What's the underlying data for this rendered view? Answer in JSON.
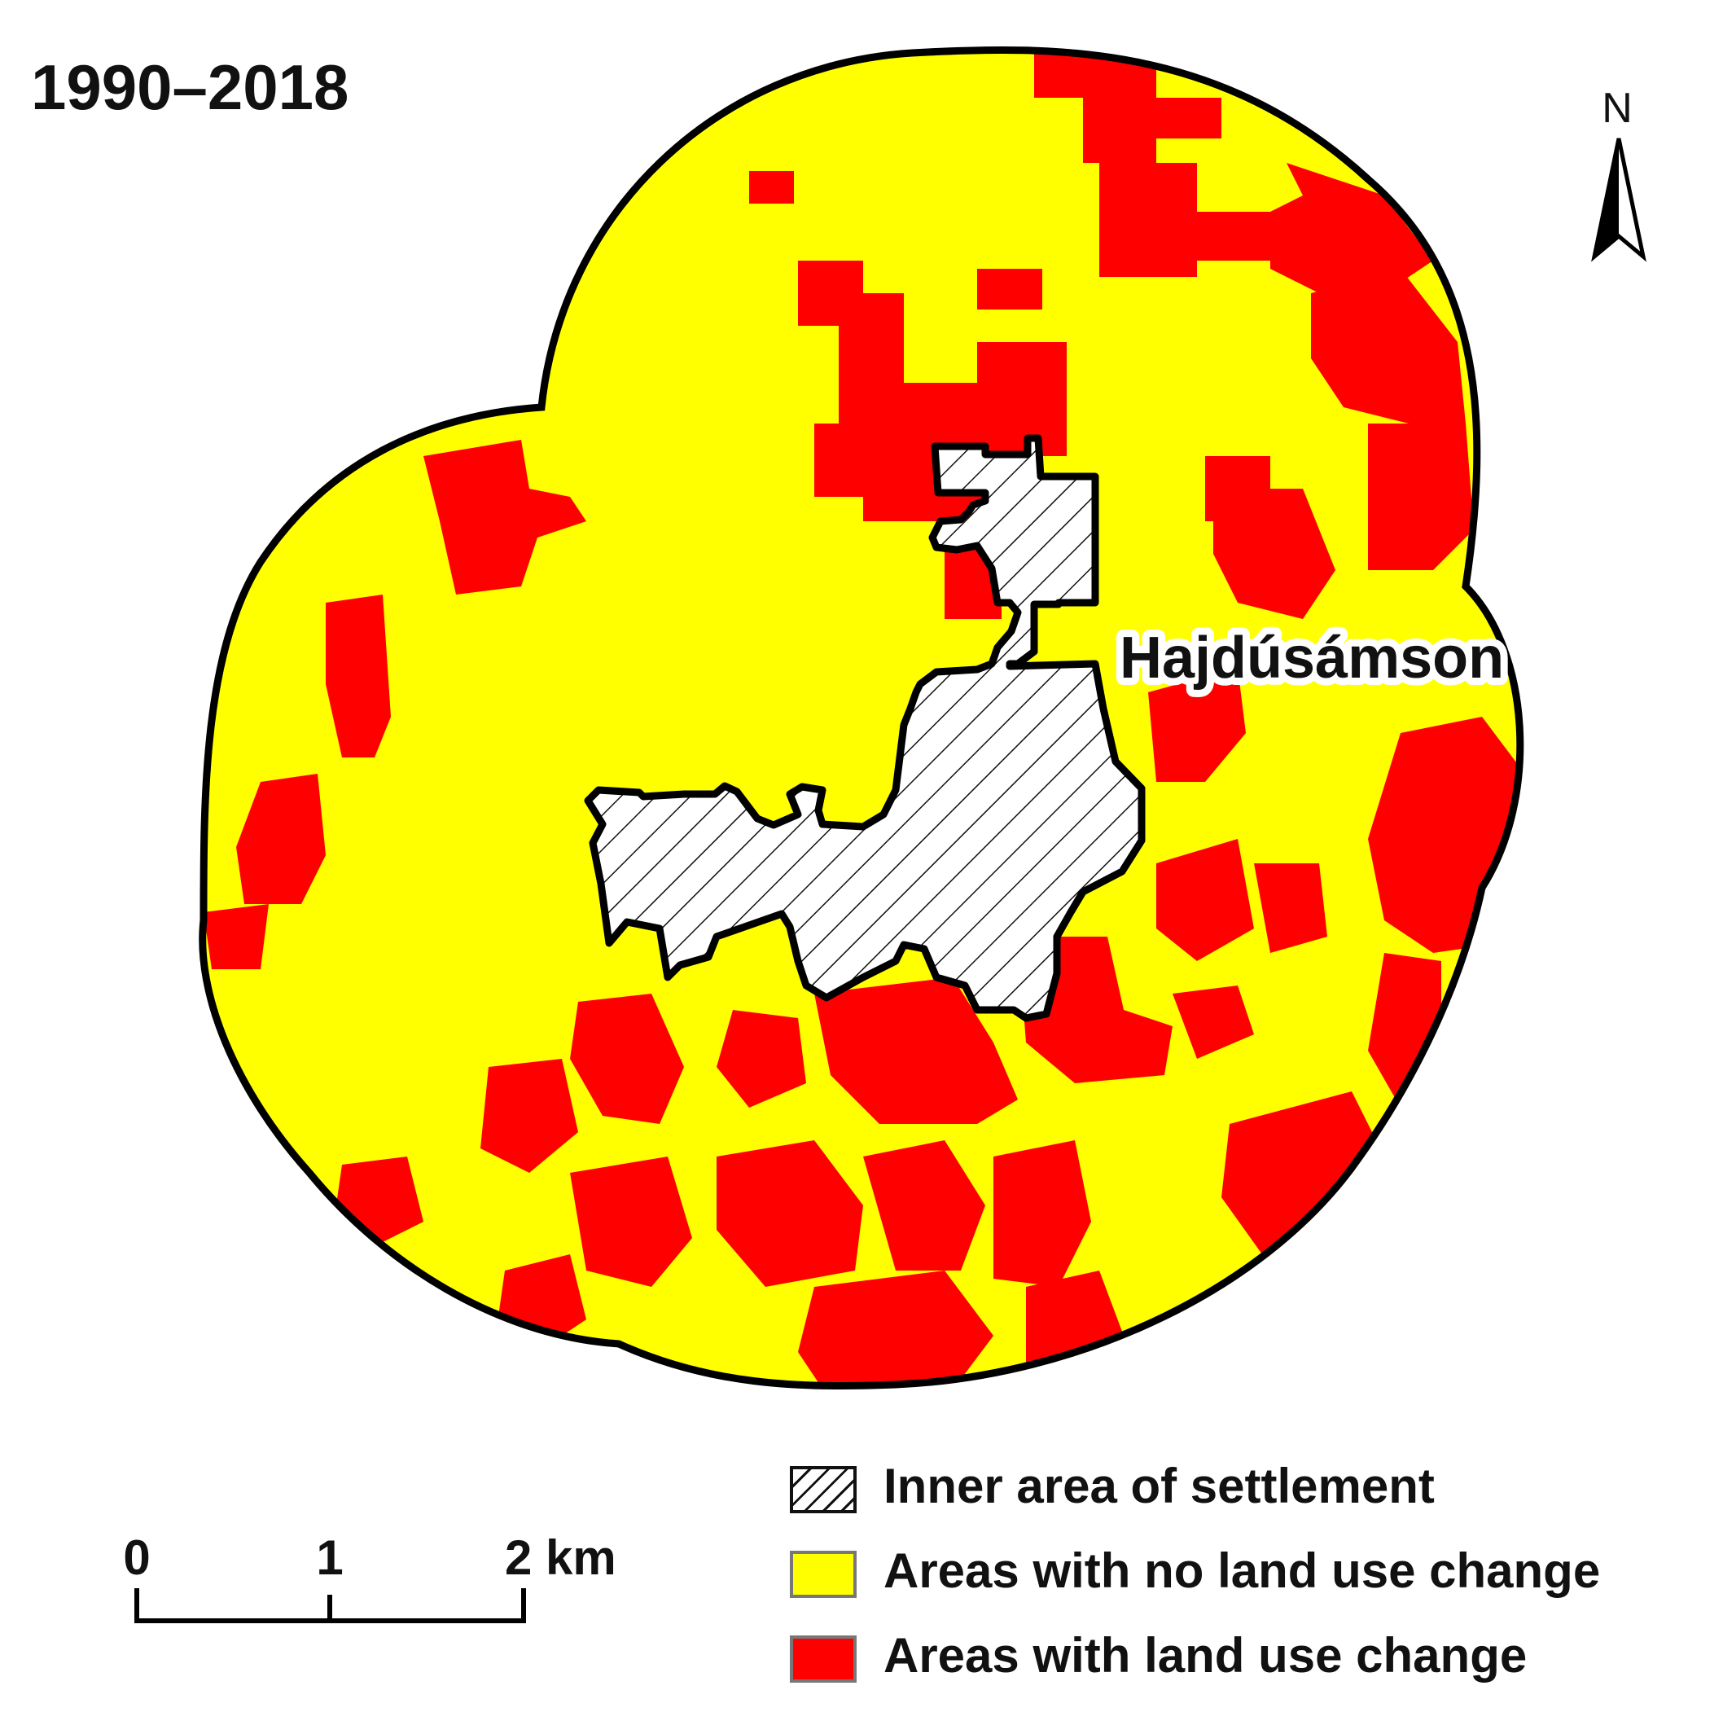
{
  "map": {
    "title": "1990–2018",
    "settlement_label": "Hajdúsámson",
    "north_label": "N",
    "colors": {
      "no_change": "#ffff00",
      "change": "#ff0000",
      "inner_area_fill": "#ffffff",
      "outline": "#000000"
    }
  },
  "scale_bar": {
    "ticks": [
      "0",
      "1",
      "2 km"
    ]
  },
  "legend": {
    "items": [
      {
        "label": "Inner area of settlement",
        "swatch": "hatch"
      },
      {
        "label": "Areas with no land use change",
        "swatch": "yellow"
      },
      {
        "label": "Areas with land use change",
        "swatch": "red"
      }
    ]
  }
}
